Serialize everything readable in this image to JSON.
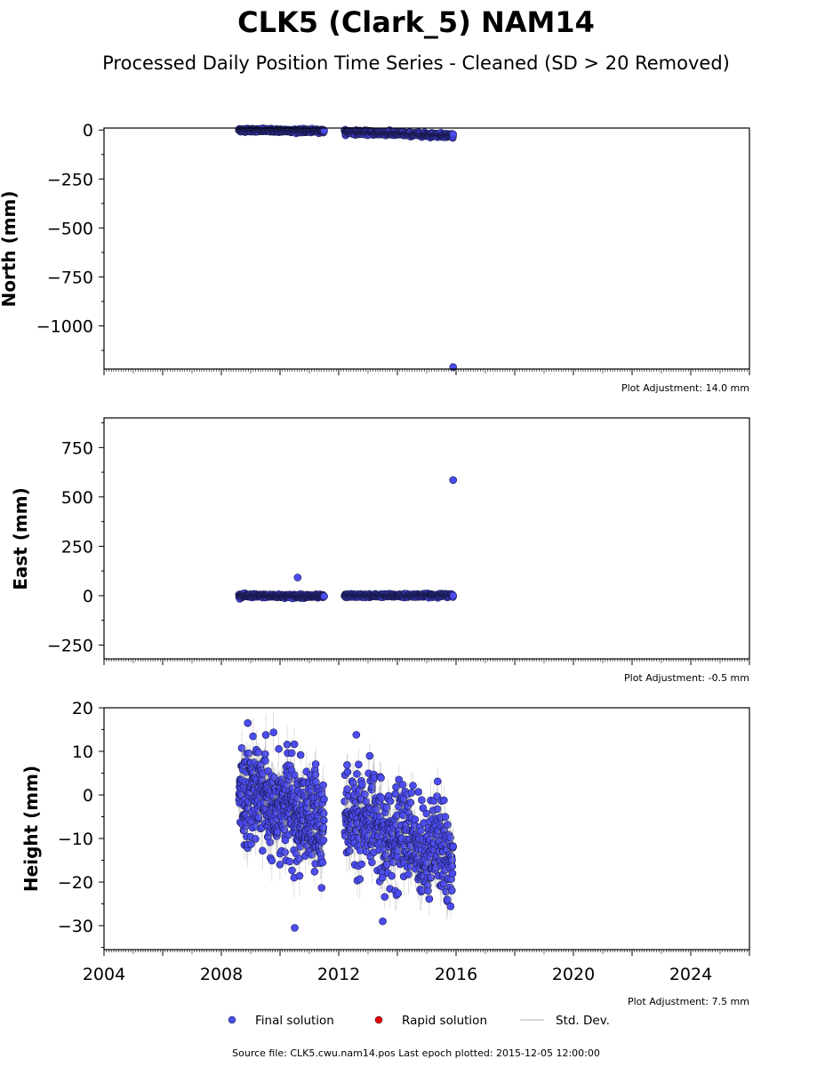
{
  "chart_data": {
    "type": "scatter",
    "title": "CLK5 (Clark_5) NAM14",
    "subtitle": "Processed Daily Position Time Series - Cleaned (SD > 20 Removed)",
    "x_range": [
      2004,
      2026
    ],
    "x_ticks": [
      "2004",
      "2008",
      "2012",
      "2016",
      "2020",
      "2024"
    ],
    "panels": [
      {
        "ylabel": "North (mm)",
        "ylim": [
          -1220,
          10
        ],
        "yticks": [
          0,
          -250,
          -500,
          -750,
          -1000
        ],
        "ytick_labels": [
          "0",
          "−250",
          "−500",
          "−750",
          "−1000"
        ],
        "adjustment": "Plot Adjustment: 14.0 mm",
        "segments": [
          {
            "x_start": 2008.6,
            "x_end": 2011.5,
            "y_start": 0,
            "y_end": -5,
            "noise": 4
          },
          {
            "x_start": 2012.2,
            "x_end": 2015.9,
            "y_start": -10,
            "y_end": -28,
            "noise": 5
          }
        ],
        "outliers": [
          {
            "x": 2015.9,
            "y": -1210
          },
          {
            "x": 2011.5,
            "y": -3
          }
        ]
      },
      {
        "ylabel": "East (mm)",
        "ylim": [
          -320,
          900
        ],
        "yticks": [
          750,
          500,
          250,
          0,
          -250
        ],
        "ytick_labels": [
          "750",
          "500",
          "250",
          "0",
          "−250"
        ],
        "adjustment": "Plot Adjustment: -0.5 mm",
        "segments": [
          {
            "x_start": 2008.6,
            "x_end": 2011.5,
            "y_start": 0,
            "y_end": -3,
            "noise": 4
          },
          {
            "x_start": 2012.2,
            "x_end": 2015.9,
            "y_start": 0,
            "y_end": 2,
            "noise": 4
          }
        ],
        "outliers": [
          {
            "x": 2010.6,
            "y": 92
          },
          {
            "x": 2015.9,
            "y": 585
          },
          {
            "x": 2011.5,
            "y": -3
          }
        ]
      },
      {
        "ylabel": "Height (mm)",
        "ylim": [
          -35.5,
          20
        ],
        "yticks": [
          20,
          10,
          0,
          -10,
          -20,
          -30
        ],
        "ytick_labels": [
          "20",
          "10",
          "0",
          "−10",
          "−20",
          "−30"
        ],
        "adjustment": "Plot Adjustment: 7.5 mm",
        "segments": [
          {
            "x_start": 2008.6,
            "x_end": 2011.5,
            "y_start": 2,
            "y_end": -8,
            "noise": 5.5
          },
          {
            "x_start": 2012.2,
            "x_end": 2015.9,
            "y_start": -5,
            "y_end": -14,
            "noise": 5.5
          }
        ],
        "outliers": [
          {
            "x": 2010.5,
            "y": -30.5
          },
          {
            "x": 2013.5,
            "y": -29
          },
          {
            "x": 2008.9,
            "y": 16.5
          },
          {
            "x": 2012.6,
            "y": 13.8
          }
        ]
      }
    ],
    "legend": {
      "placement": "bottom-center",
      "entries": [
        {
          "name": "Final solution",
          "color": "#4b4bf0"
        },
        {
          "name": "Rapid solution",
          "color": "#e00000"
        },
        {
          "name": "Std. Dev.",
          "color": "#cccccc"
        }
      ]
    },
    "source_note": "Source file: CLK5.cwu.nam14.pos  Last epoch plotted: 2015-12-05 12:00:00"
  }
}
